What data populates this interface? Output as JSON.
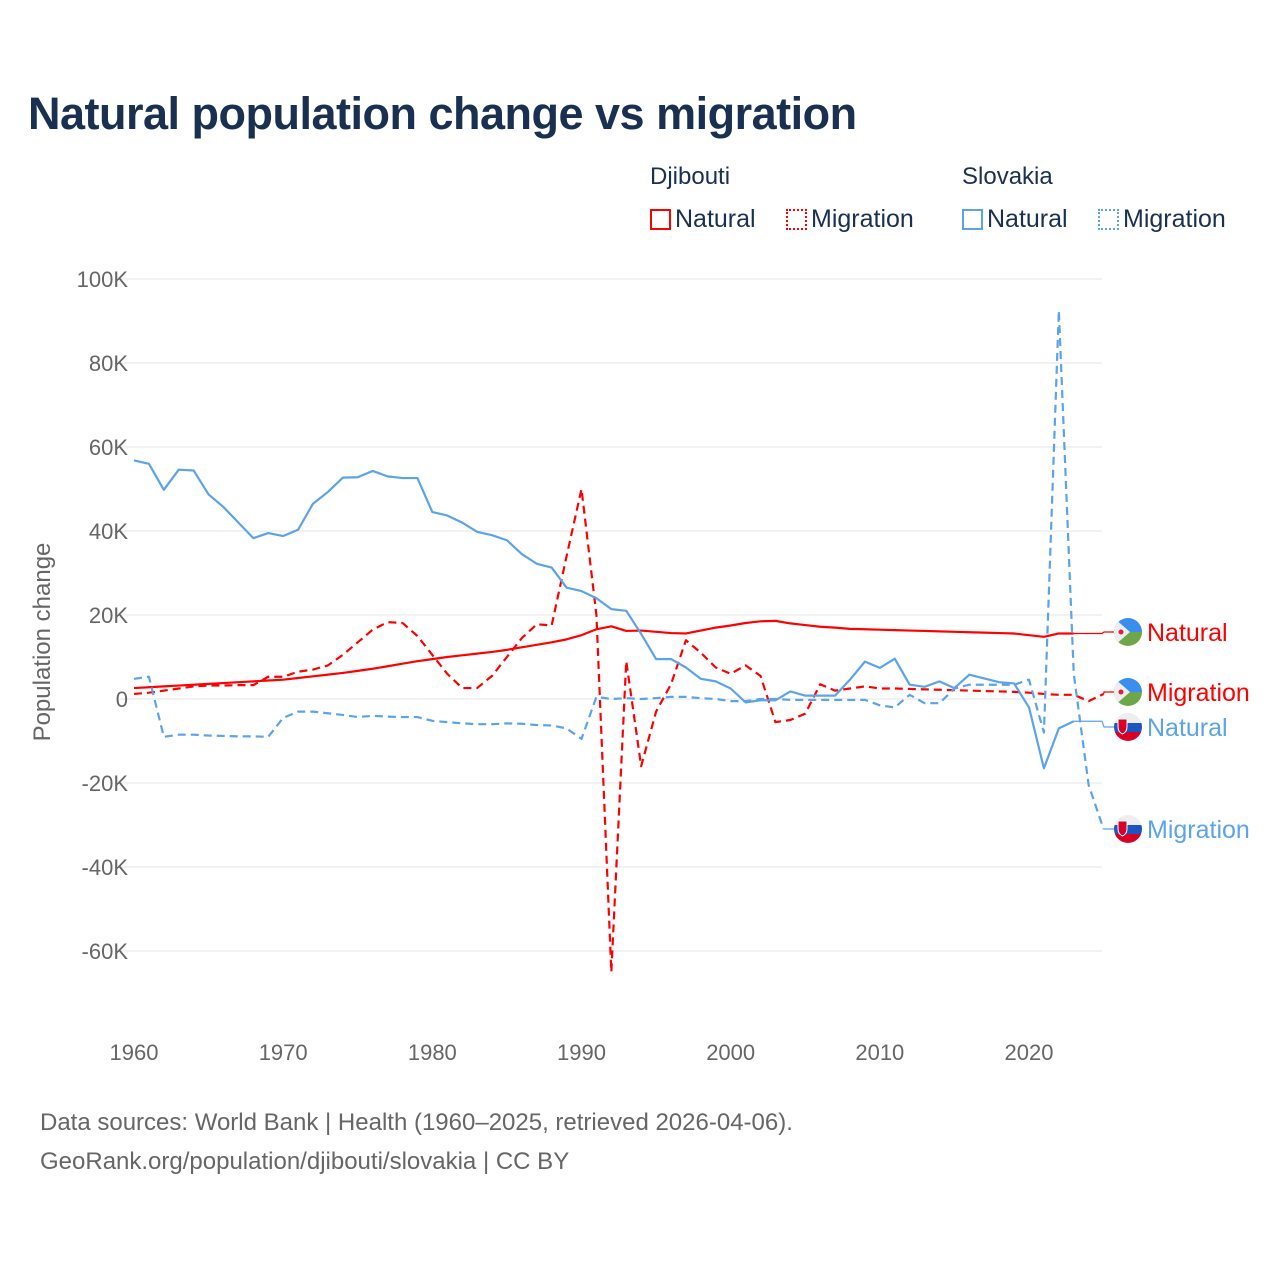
{
  "title": "Natural population change vs migration",
  "legend": {
    "groups": [
      {
        "name": "Djibouti",
        "items": [
          "Natural",
          "Migration"
        ],
        "color": "#ff0000"
      },
      {
        "name": "Slovakia",
        "items": [
          "Natural",
          "Migration"
        ],
        "color": "#5ba3ea"
      }
    ]
  },
  "sources": {
    "line1": "Data sources: World Bank | Health (1960–2025, retrieved 2026-04-06).",
    "line2": "GeoRank.org/population/djibouti/slovakia | CC BY"
  },
  "chart_data": {
    "type": "line",
    "title": "Natural population change vs migration",
    "xlabel": "",
    "ylabel": "Population change",
    "xlim": [
      1960,
      2025
    ],
    "ylim": [
      -70000,
      100000
    ],
    "x_ticks": [
      1960,
      1970,
      1980,
      1990,
      2000,
      2010,
      2020
    ],
    "x_tick_labels": [
      "1960",
      "1970",
      "1980",
      "1990",
      "2000",
      "2010",
      "2020"
    ],
    "y_ticks": [
      100000,
      80000,
      60000,
      40000,
      20000,
      0,
      -20000,
      -40000,
      -60000
    ],
    "y_tick_labels": [
      "100K",
      "80K",
      "60K",
      "40K",
      "20K",
      "0",
      "-20K",
      "-40K",
      "-60K"
    ],
    "grid": true,
    "legend_position": "top-right",
    "series": [
      {
        "name": "Djibouti Natural",
        "label": "Natural",
        "color": "#ff0000",
        "dash": false,
        "start": 1960,
        "values_k": [
          2.6,
          2.8,
          3.0,
          3.2,
          3.4,
          3.6,
          3.8,
          4.0,
          4.2,
          4.4,
          4.6,
          5.0,
          5.4,
          5.8,
          6.2,
          6.7,
          7.2,
          7.8,
          8.4,
          9.0,
          9.5,
          10.0,
          10.4,
          10.8,
          11.2,
          11.7,
          12.3,
          12.9,
          13.5,
          14.2,
          15.2,
          16.6,
          17.3,
          16.2,
          16.3,
          16.0,
          15.7,
          15.6,
          16.3,
          17.0,
          17.5,
          18.1,
          18.5,
          18.6,
          18.0,
          17.6,
          17.2,
          17.0,
          16.7,
          16.6,
          16.5,
          16.4,
          16.3,
          16.2,
          16.1,
          16.0,
          15.9,
          15.8,
          15.7,
          15.6,
          15.2,
          14.8,
          15.6,
          15.6
        ]
      },
      {
        "name": "Djibouti Migration",
        "label": "Migration",
        "color": "#ff0000",
        "dash": true,
        "start": 1960,
        "values_k": [
          1.2,
          1.5,
          2.0,
          2.5,
          3.0,
          3.2,
          3.2,
          3.3,
          3.3,
          5.3,
          5.3,
          6.5,
          7.0,
          8.0,
          10.5,
          13.5,
          16.5,
          18.3,
          18.1,
          15.0,
          10.5,
          6.0,
          2.6,
          2.6,
          5.5,
          10.0,
          14.5,
          17.8,
          17.5,
          34.0,
          50.0,
          20.0,
          -65.0,
          9.0,
          -16.0,
          -3.0,
          3.5,
          14.0,
          11.0,
          7.5,
          6.0,
          8.0,
          5.5,
          -5.5,
          -5.0,
          -3.5,
          3.5,
          2.0,
          2.5,
          3.0,
          2.5,
          2.5,
          2.4,
          2.3,
          2.2,
          2.1,
          2.0,
          1.9,
          1.8,
          1.7,
          1.5,
          1.2,
          1.0,
          1.0,
          -0.5,
          1.2
        ]
      },
      {
        "name": "Slovakia Natural",
        "label": "Natural",
        "color": "#5ba3ea",
        "dash": false,
        "start": 1960,
        "values_k": [
          56.8,
          56.0,
          49.8,
          54.6,
          54.4,
          48.7,
          45.7,
          42.0,
          38.3,
          39.5,
          38.8,
          40.3,
          46.5,
          49.3,
          52.7,
          52.8,
          54.3,
          53.0,
          52.6,
          52.6,
          44.5,
          43.7,
          42.0,
          39.8,
          39.0,
          37.8,
          34.5,
          32.2,
          31.3,
          26.5,
          25.7,
          24.0,
          21.4,
          21.0,
          15.5,
          9.5,
          9.5,
          7.5,
          4.8,
          4.2,
          2.5,
          -0.8,
          -0.3,
          -0.3,
          1.8,
          0.8,
          0.8,
          0.8,
          4.6,
          8.9,
          7.4,
          9.6,
          3.4,
          2.9,
          4.2,
          2.6,
          5.8,
          4.9,
          4.0,
          3.7,
          -2.0,
          -16.5,
          -7.0,
          -5.3
        ]
      },
      {
        "name": "Slovakia Migration",
        "label": "Migration",
        "color": "#5ba3ea",
        "dash": true,
        "start": 1960,
        "values_k": [
          4.8,
          5.3,
          -9.0,
          -8.5,
          -8.5,
          -8.7,
          -8.8,
          -8.9,
          -8.9,
          -9.0,
          -4.5,
          -3.0,
          -3.0,
          -3.4,
          -3.8,
          -4.3,
          -4.0,
          -4.2,
          -4.3,
          -4.3,
          -5.2,
          -5.5,
          -5.8,
          -6.0,
          -6.0,
          -5.8,
          -5.9,
          -6.2,
          -6.3,
          -7.0,
          -9.5,
          0.5,
          0.0,
          0.2,
          0.0,
          0.2,
          0.5,
          0.5,
          0.2,
          0.0,
          -0.5,
          -0.5,
          0.0,
          0.0,
          -0.2,
          -0.2,
          -0.2,
          -0.2,
          -0.2,
          -0.2,
          -1.5,
          -2.0,
          1.0,
          -1.0,
          -1.0,
          2.5,
          3.4,
          3.4,
          3.4,
          3.4,
          4.6,
          -8.0,
          92.5,
          6.0,
          -20.5,
          -31.0
        ]
      }
    ]
  }
}
